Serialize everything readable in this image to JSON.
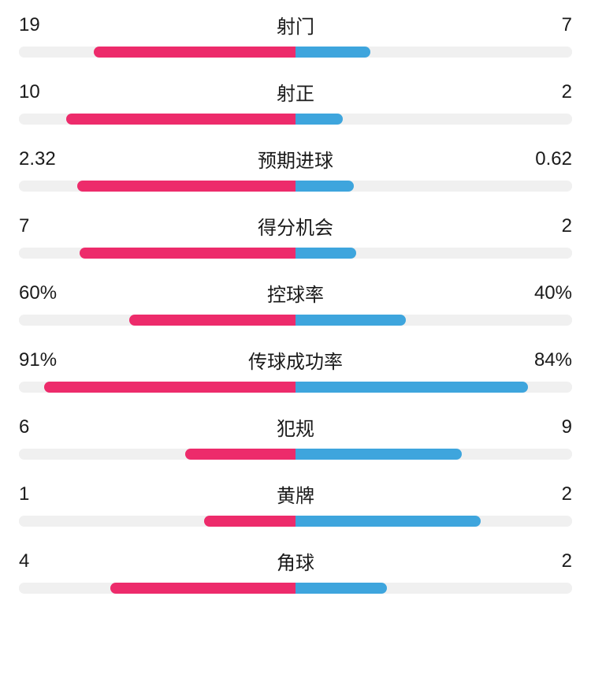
{
  "colors": {
    "left_bar": "#ed2b6b",
    "right_bar": "#3ea5dd",
    "track": "#f0f0f0",
    "text": "#1a1a1a",
    "background": "#ffffff"
  },
  "typography": {
    "value_fontsize": 24,
    "label_fontsize": 24,
    "font_weight": 400
  },
  "bar_style": {
    "height": 14,
    "border_radius": 7
  },
  "stats": [
    {
      "label": "射门",
      "left_value": "19",
      "right_value": "7",
      "left_pct": 73,
      "right_pct": 27
    },
    {
      "label": "射正",
      "left_value": "10",
      "right_value": "2",
      "left_pct": 83,
      "right_pct": 17
    },
    {
      "label": "预期进球",
      "left_value": "2.32",
      "right_value": "0.62",
      "left_pct": 79,
      "right_pct": 21
    },
    {
      "label": "得分机会",
      "left_value": "7",
      "right_value": "2",
      "left_pct": 78,
      "right_pct": 22
    },
    {
      "label": "控球率",
      "left_value": "60%",
      "right_value": "40%",
      "left_pct": 60,
      "right_pct": 40
    },
    {
      "label": "传球成功率",
      "left_value": "91%",
      "right_value": "84%",
      "left_pct": 91,
      "right_pct": 84
    },
    {
      "label": "犯规",
      "left_value": "6",
      "right_value": "9",
      "left_pct": 40,
      "right_pct": 60
    },
    {
      "label": "黄牌",
      "left_value": "1",
      "right_value": "2",
      "left_pct": 33,
      "right_pct": 67
    },
    {
      "label": "角球",
      "left_value": "4",
      "right_value": "2",
      "left_pct": 67,
      "right_pct": 33
    }
  ]
}
